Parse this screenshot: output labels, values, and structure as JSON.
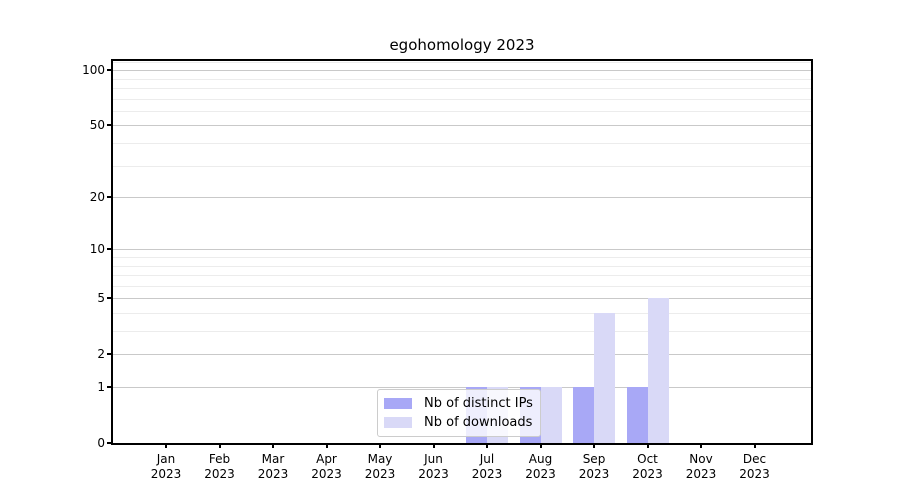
{
  "chart_data": {
    "type": "bar",
    "title": "egohomology 2023",
    "months": [
      "Jan",
      "Feb",
      "Mar",
      "Apr",
      "May",
      "Jun",
      "Jul",
      "Aug",
      "Sep",
      "Oct",
      "Nov",
      "Dec"
    ],
    "year": "2023",
    "series": [
      {
        "name": "Nb of distinct IPs",
        "color": "#a8a8f6",
        "values": [
          0,
          0,
          0,
          0,
          0,
          0,
          1,
          1,
          1,
          1,
          0,
          0
        ]
      },
      {
        "name": "Nb of downloads",
        "color": "#d9d9f7",
        "values": [
          0,
          0,
          0,
          0,
          0,
          0,
          1,
          1,
          4,
          5,
          0,
          0
        ]
      }
    ],
    "y_axis": {
      "scale": "log1p",
      "major_ticks": [
        0,
        1,
        2,
        5,
        10,
        20,
        50,
        100
      ],
      "minor_ticks": [
        3,
        4,
        6,
        7,
        8,
        9,
        30,
        40,
        60,
        70,
        80,
        90,
        110
      ],
      "max": 112
    },
    "x_axis": {
      "tick_label_format": "month-over-year"
    },
    "legend": {
      "position": "lower center"
    },
    "colors": {
      "major_grid": "#c9c9c9",
      "minor_grid": "#ececec",
      "spine": "#000000",
      "background": "#ffffff"
    }
  }
}
